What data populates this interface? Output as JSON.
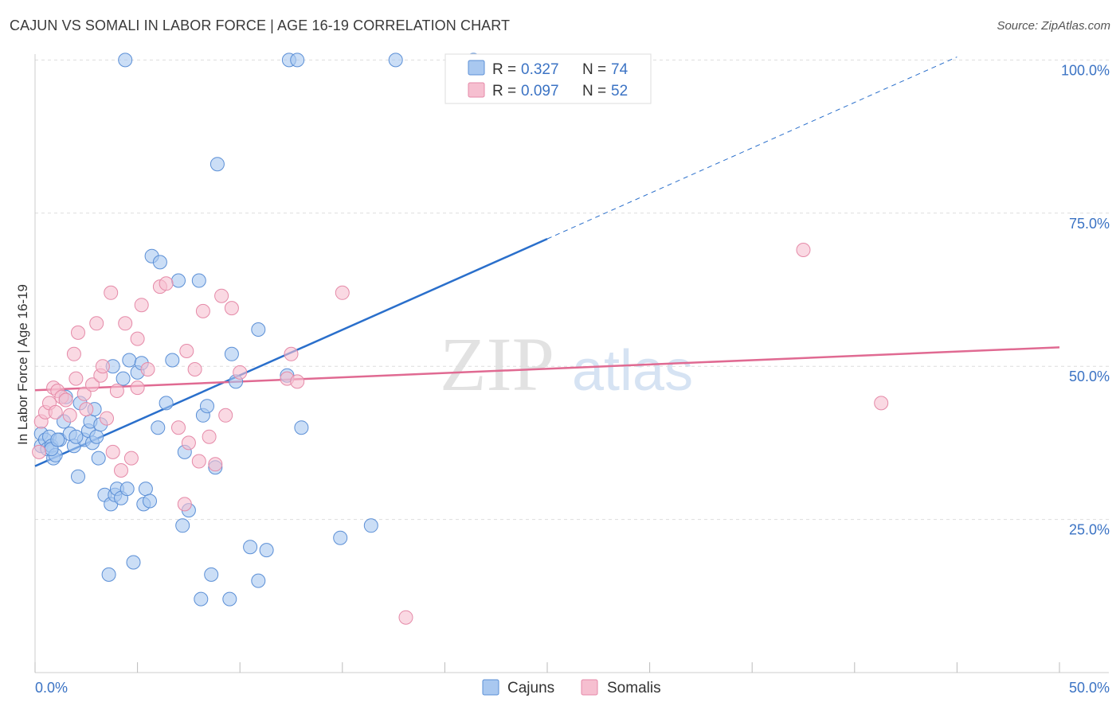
{
  "header": {
    "title": "CAJUN VS SOMALI IN LABOR FORCE | AGE 16-19 CORRELATION CHART",
    "source": "Source: ZipAtlas.com"
  },
  "watermark": {
    "part1": "ZIP",
    "part2": "atlas"
  },
  "colors": {
    "cajun_fill": "#a9c8f0",
    "cajun_stroke": "#5b8fd6",
    "cajun_line": "#2a6fcb",
    "somali_fill": "#f6bfd0",
    "somali_stroke": "#e58aa8",
    "somali_line": "#e06a92",
    "grid": "#dddddd",
    "tick_text": "#3b73c4"
  },
  "legend": {
    "rows": [
      {
        "r_label": "R =",
        "r_value": "0.327",
        "n_label": "N =",
        "n_value": "74"
      },
      {
        "r_label": "R =",
        "r_value": "0.097",
        "n_label": "N =",
        "n_value": "52"
      }
    ]
  },
  "bottom_legend": {
    "items": [
      "Cajuns",
      "Somalis"
    ]
  },
  "chart_data": {
    "type": "scatter",
    "title": "CAJUN VS SOMALI IN LABOR FORCE | AGE 16-19 CORRELATION CHART",
    "xlabel": "",
    "ylabel": "In Labor Force | Age 16-19",
    "xlim": [
      0,
      50
    ],
    "ylim": [
      0,
      102
    ],
    "x_tick_labels": [
      "0.0%",
      "50.0%"
    ],
    "y_ticks": [
      25,
      50,
      75,
      100
    ],
    "y_tick_labels": [
      "25.0%",
      "50.0%",
      "75.0%",
      "100.0%"
    ],
    "grid": true,
    "series": [
      {
        "name": "Cajuns",
        "R": 0.327,
        "N": 74,
        "trend": {
          "x0": 0,
          "y0": 33.7,
          "x1": 25,
          "y1": 70.8,
          "dash_to_x": 45,
          "dash_to_y": 100.5
        },
        "points": [
          [
            0.3,
            39.0
          ],
          [
            0.3,
            37.0
          ],
          [
            0.5,
            38.0
          ],
          [
            0.6,
            36.5
          ],
          [
            0.7,
            38.5
          ],
          [
            0.8,
            37.0
          ],
          [
            0.9,
            35.0
          ],
          [
            1.0,
            35.5
          ],
          [
            1.2,
            38.0
          ],
          [
            1.4,
            41.0
          ],
          [
            1.5,
            45.0
          ],
          [
            1.7,
            39.0
          ],
          [
            1.9,
            37.0
          ],
          [
            2.1,
            32.0
          ],
          [
            2.2,
            44.0
          ],
          [
            2.4,
            38.0
          ],
          [
            2.6,
            39.5
          ],
          [
            2.7,
            41.0
          ],
          [
            2.8,
            37.5
          ],
          [
            2.9,
            43.0
          ],
          [
            3.0,
            38.5
          ],
          [
            3.1,
            35.0
          ],
          [
            3.2,
            40.5
          ],
          [
            3.4,
            29.0
          ],
          [
            3.6,
            16.0
          ],
          [
            3.7,
            27.5
          ],
          [
            3.8,
            50.0
          ],
          [
            3.9,
            29.0
          ],
          [
            4.0,
            30.0
          ],
          [
            4.2,
            28.5
          ],
          [
            4.3,
            48.0
          ],
          [
            4.4,
            100.0
          ],
          [
            4.5,
            30.0
          ],
          [
            4.6,
            51.0
          ],
          [
            4.8,
            18.0
          ],
          [
            5.0,
            49.0
          ],
          [
            5.2,
            50.5
          ],
          [
            5.3,
            27.5
          ],
          [
            5.4,
            30.0
          ],
          [
            5.6,
            28.0
          ],
          [
            5.7,
            68.0
          ],
          [
            6.0,
            40.0
          ],
          [
            6.1,
            67.0
          ],
          [
            6.4,
            44.0
          ],
          [
            6.7,
            51.0
          ],
          [
            7.0,
            64.0
          ],
          [
            7.2,
            24.0
          ],
          [
            7.3,
            36.0
          ],
          [
            7.5,
            26.5
          ],
          [
            8.0,
            64.0
          ],
          [
            8.1,
            12.0
          ],
          [
            8.2,
            42.0
          ],
          [
            8.4,
            43.5
          ],
          [
            8.6,
            16.0
          ],
          [
            8.8,
            33.5
          ],
          [
            8.9,
            83.0
          ],
          [
            9.5,
            12.0
          ],
          [
            9.6,
            52.0
          ],
          [
            9.8,
            47.5
          ],
          [
            10.5,
            20.5
          ],
          [
            10.9,
            56.0
          ],
          [
            10.9,
            15.0
          ],
          [
            11.3,
            20.0
          ],
          [
            12.3,
            48.5
          ],
          [
            12.4,
            100.0
          ],
          [
            12.8,
            100.0
          ],
          [
            13.0,
            40.0
          ],
          [
            14.9,
            22.0
          ],
          [
            16.4,
            24.0
          ],
          [
            17.6,
            100.0
          ],
          [
            21.4,
            100.0
          ],
          [
            0.8,
            36.5
          ],
          [
            1.1,
            38.0
          ],
          [
            2.0,
            38.5
          ]
        ]
      },
      {
        "name": "Somalis",
        "R": 0.097,
        "N": 52,
        "trend": {
          "x0": 0,
          "y0": 46.1,
          "x1": 50,
          "y1": 53.1
        },
        "points": [
          [
            0.2,
            36.0
          ],
          [
            0.3,
            41.0
          ],
          [
            0.5,
            42.5
          ],
          [
            0.7,
            44.0
          ],
          [
            0.9,
            46.5
          ],
          [
            1.0,
            42.5
          ],
          [
            1.1,
            46.0
          ],
          [
            1.3,
            45.0
          ],
          [
            1.5,
            44.5
          ],
          [
            1.7,
            42.0
          ],
          [
            1.9,
            52.0
          ],
          [
            2.0,
            48.0
          ],
          [
            2.1,
            55.5
          ],
          [
            2.4,
            45.5
          ],
          [
            2.5,
            43.0
          ],
          [
            2.8,
            47.0
          ],
          [
            3.0,
            57.0
          ],
          [
            3.2,
            48.5
          ],
          [
            3.3,
            50.0
          ],
          [
            3.5,
            41.5
          ],
          [
            3.7,
            62.0
          ],
          [
            3.8,
            36.0
          ],
          [
            4.0,
            46.0
          ],
          [
            4.2,
            33.0
          ],
          [
            4.4,
            57.0
          ],
          [
            4.7,
            35.0
          ],
          [
            5.0,
            46.5
          ],
          [
            5.0,
            54.5
          ],
          [
            5.2,
            60.0
          ],
          [
            5.5,
            49.5
          ],
          [
            6.1,
            63.0
          ],
          [
            6.4,
            63.5
          ],
          [
            7.0,
            40.0
          ],
          [
            7.3,
            27.5
          ],
          [
            7.4,
            52.5
          ],
          [
            7.5,
            37.5
          ],
          [
            7.8,
            49.5
          ],
          [
            8.0,
            34.5
          ],
          [
            8.2,
            59.0
          ],
          [
            8.5,
            38.5
          ],
          [
            8.8,
            34.0
          ],
          [
            9.1,
            61.5
          ],
          [
            9.3,
            42.0
          ],
          [
            9.6,
            59.5
          ],
          [
            10.0,
            49.0
          ],
          [
            12.3,
            48.0
          ],
          [
            12.5,
            52.0
          ],
          [
            12.8,
            47.5
          ],
          [
            15.0,
            62.0
          ],
          [
            18.1,
            9.0
          ],
          [
            37.5,
            69.0
          ],
          [
            41.3,
            44.0
          ]
        ]
      }
    ]
  }
}
